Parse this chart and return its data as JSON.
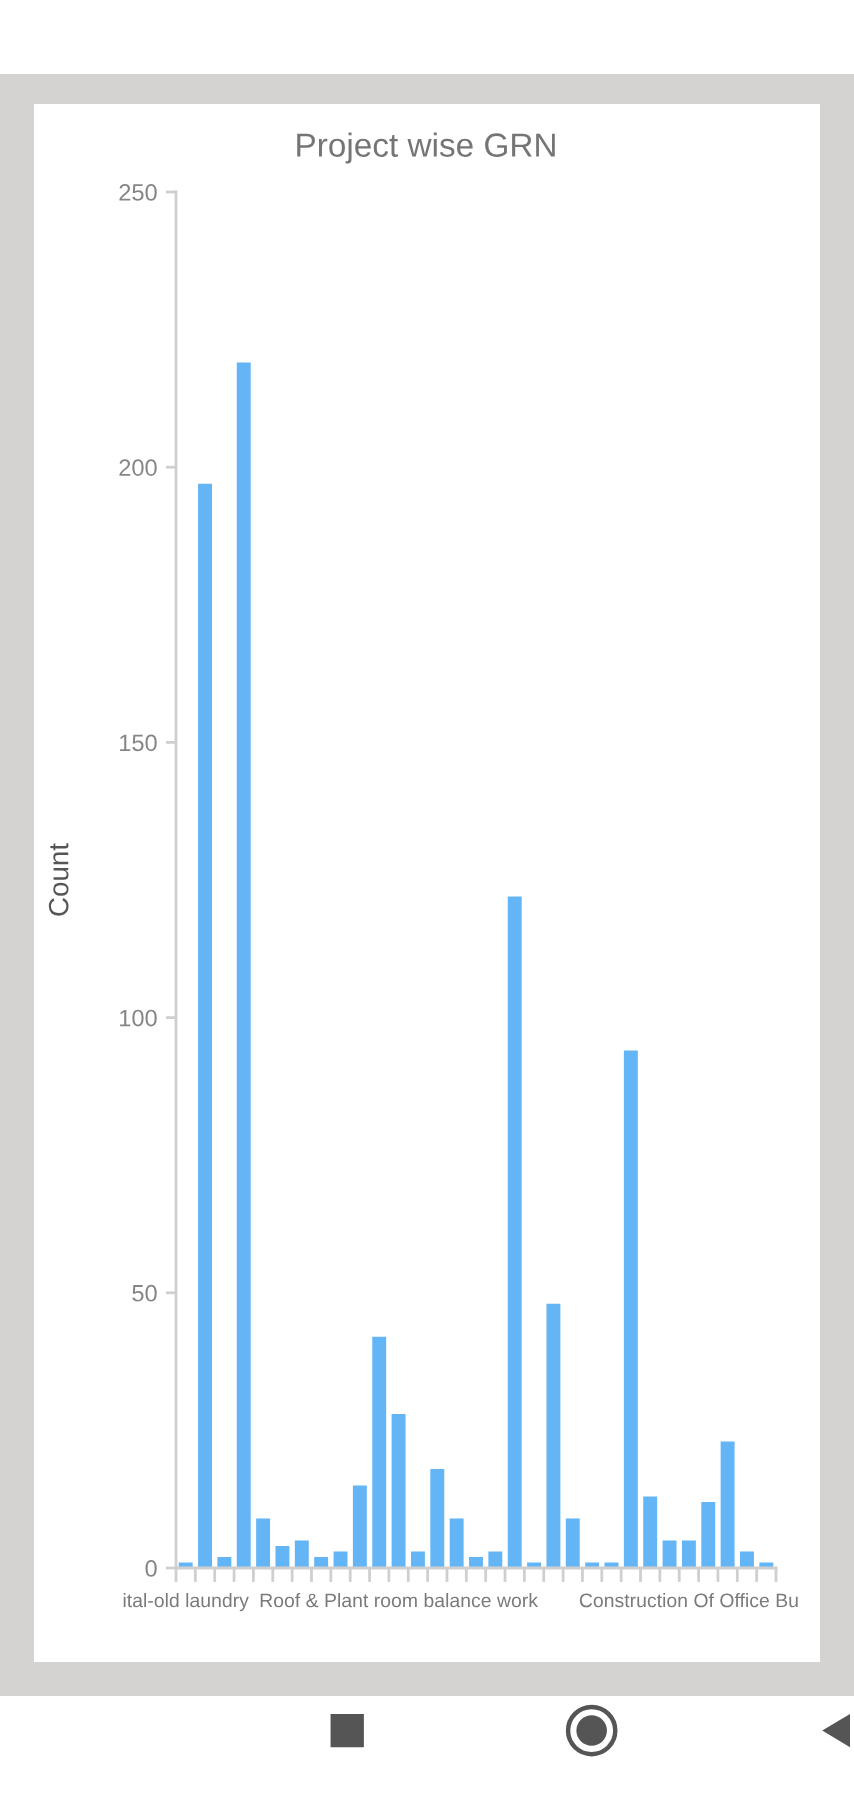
{
  "chart_data": {
    "type": "bar",
    "title": "Project wise GRN",
    "ylabel": "Count",
    "categories": [
      "ital-old laundry",
      null,
      null,
      null,
      null,
      null,
      null,
      null,
      null,
      null,
      null,
      "Roof & Plant room balance work",
      null,
      null,
      null,
      null,
      null,
      null,
      null,
      null,
      null,
      null,
      null,
      null,
      null,
      null,
      "Construction Of Office Bu",
      null,
      null,
      null,
      null
    ],
    "values": [
      1,
      197,
      2,
      219,
      9,
      4,
      5,
      2,
      3,
      15,
      42,
      28,
      3,
      18,
      9,
      2,
      3,
      122,
      1,
      48,
      9,
      1,
      1,
      94,
      13,
      5,
      5,
      12,
      23,
      3,
      1
    ],
    "color": "#64b5f6",
    "ylim": [
      0,
      250
    ],
    "yticks": [
      0,
      50,
      100,
      150,
      200,
      250
    ]
  }
}
